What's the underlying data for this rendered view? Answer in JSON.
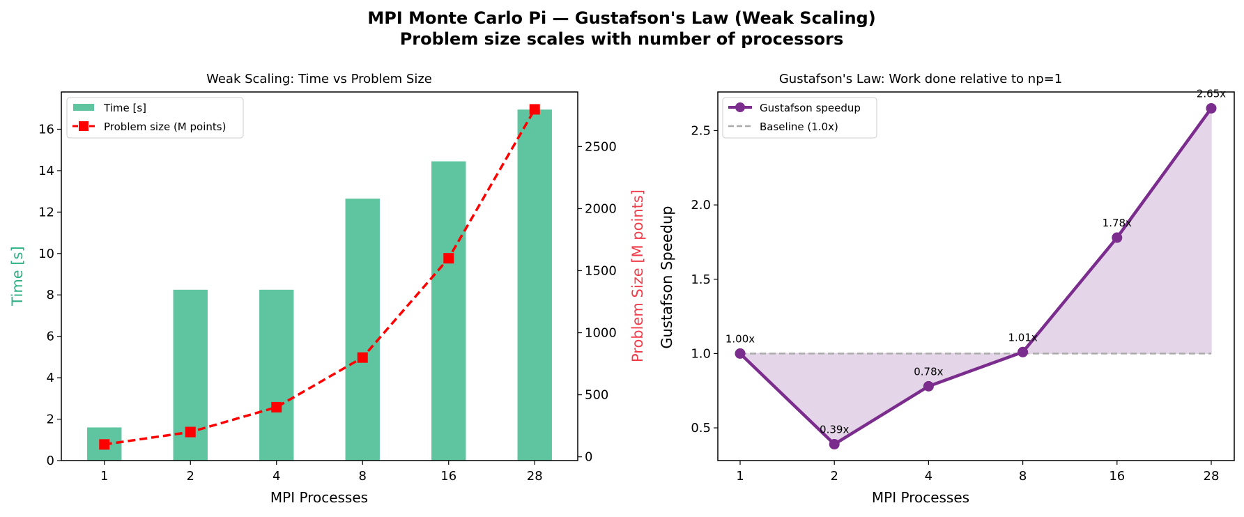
{
  "figure": {
    "suptitle_line1": "MPI Monte Carlo Pi — Gustafson's Law (Weak Scaling)",
    "suptitle_line2": "Problem size scales with number of processors"
  },
  "colors": {
    "bar": "#5ec5a0",
    "problem_line": "#ff0000",
    "time_axis_label": "#2db083",
    "size_axis_label": "#f03c4b",
    "speedup_line": "#7b2d8e",
    "speedup_fill": "#e4d5e8",
    "baseline": "#aaaaaa"
  },
  "chart_data": [
    {
      "type": "bar",
      "title": "Weak Scaling: Time vs Problem Size",
      "xlabel": "MPI Processes",
      "ylabel": "Time [s]",
      "ylabel_right": "Problem Size [M points]",
      "categories": [
        "1",
        "2",
        "4",
        "8",
        "16",
        "28"
      ],
      "ylim": [
        0,
        17.8
      ],
      "yticks": [
        0,
        2,
        4,
        6,
        8,
        10,
        12,
        14,
        16
      ],
      "ylim_right": [
        -30,
        2940
      ],
      "yticks_right": [
        0,
        500,
        1000,
        1500,
        2000,
        2500
      ],
      "series": [
        {
          "name": "Time [s]",
          "type": "bar",
          "axis": "left",
          "values": [
            1.6,
            8.25,
            8.25,
            12.65,
            14.45,
            16.95
          ]
        },
        {
          "name": "Problem size (M points)",
          "type": "line",
          "axis": "right",
          "values": [
            100,
            200,
            400,
            800,
            1600,
            2800
          ]
        }
      ],
      "legend": "top-left",
      "grid": false
    },
    {
      "type": "line",
      "title": "Gustafson's Law: Work done relative to np=1",
      "xlabel": "MPI Processes",
      "ylabel": "Gustafson Speedup",
      "categories": [
        "1",
        "2",
        "4",
        "8",
        "16",
        "28"
      ],
      "ylim": [
        0.28,
        2.76
      ],
      "yticks": [
        0.5,
        1.0,
        1.5,
        2.0,
        2.5
      ],
      "ytick_labels": [
        "0.5",
        "1.0",
        "1.5",
        "2.0",
        "2.5"
      ],
      "series": [
        {
          "name": "Gustafson speedup",
          "values": [
            1.0,
            0.39,
            0.78,
            1.01,
            1.78,
            2.65
          ]
        },
        {
          "name": "Baseline (1.0x)",
          "values": [
            1.0,
            1.0,
            1.0,
            1.0,
            1.0,
            1.0
          ]
        }
      ],
      "data_labels": [
        "1.00x",
        "0.39x",
        "0.78x",
        "1.01x",
        "1.78x",
        "2.65x"
      ],
      "legend": "top-left",
      "grid": false
    }
  ]
}
